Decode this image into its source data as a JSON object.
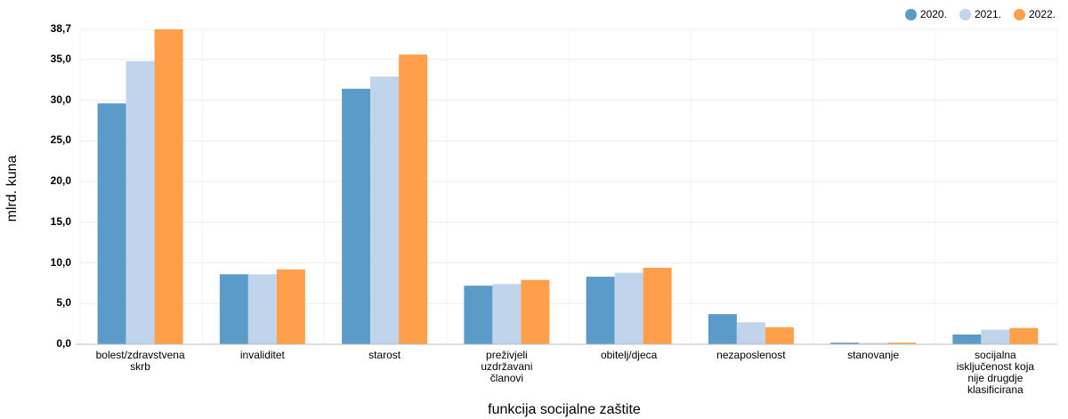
{
  "chart_data": {
    "type": "bar",
    "xlabel": "funkcija socijalne zaštite",
    "ylabel": "mlrd. kuna",
    "ylim": [
      0,
      38.7
    ],
    "yticks": [
      {
        "value": 0,
        "label": "0,0"
      },
      {
        "value": 5,
        "label": "5,0"
      },
      {
        "value": 10,
        "label": "10,0"
      },
      {
        "value": 15,
        "label": "15,0"
      },
      {
        "value": 20,
        "label": "20,0"
      },
      {
        "value": 25,
        "label": "25,0"
      },
      {
        "value": 30,
        "label": "30,0"
      },
      {
        "value": 35,
        "label": "35,0"
      },
      {
        "value": 38.7,
        "label": "38,7"
      }
    ],
    "categories": [
      "bolest/zdravstvena\nskrb",
      "invaliditet",
      "starost",
      "preživjeli\nuzdržavani\nčlanovi",
      "obitelj/djeca",
      "nezaposlenost",
      "stanovanje",
      "socijalna\nisključenost koja\nnije drugdje\nklasificirana"
    ],
    "series": [
      {
        "name": "2020.",
        "color": "#5a9bc9",
        "values": [
          29.6,
          8.6,
          31.4,
          7.2,
          8.3,
          3.7,
          0.2,
          1.2
        ]
      },
      {
        "name": "2021.",
        "color": "#c0d4ec",
        "values": [
          34.8,
          8.6,
          32.9,
          7.4,
          8.8,
          2.7,
          0.15,
          1.8
        ]
      },
      {
        "name": "2022.",
        "color": "#ff9f4a",
        "values": [
          38.7,
          9.2,
          35.6,
          7.9,
          9.4,
          2.1,
          0.2,
          2.0
        ]
      }
    ],
    "grid": true,
    "legend_position": "top-right"
  }
}
